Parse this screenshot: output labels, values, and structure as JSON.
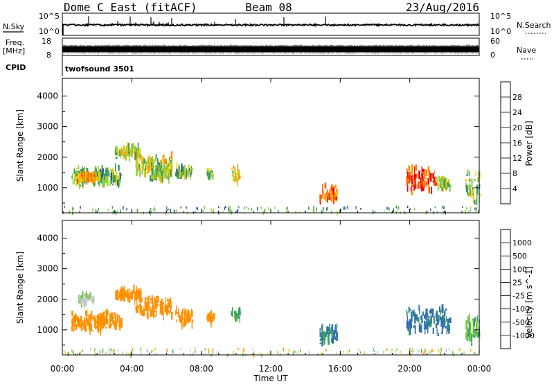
{
  "header": {
    "station": "Dome C East (fitACF)",
    "beam": "Beam 08",
    "date": "23/Aug/2016"
  },
  "strips": {
    "nsky_label": "N.Sky",
    "nsky_ticks": [
      "10^5",
      "10^0"
    ],
    "nsky_right_ticks": [
      "10^5",
      "10^0"
    ],
    "nsearch_label": "N.Search",
    "freq_label_1": "Freq.",
    "freq_label_2": "[MHz]",
    "freq_ticks": [
      "18",
      "8"
    ],
    "nave_ticks": [
      "60",
      "0"
    ],
    "nave_label": "Nave",
    "cpid_label": "CPID",
    "cpid_value": "twofsound 3501"
  },
  "power_colorbar": {
    "title": "Power [dB]",
    "ticks": [
      "28",
      "24",
      "20",
      "16",
      "12",
      "8",
      "4"
    ],
    "colors": [
      "#ee0000",
      "#ff5a00",
      "#ff9600",
      "#f0c800",
      "#90d040",
      "#3a9a5a",
      "#2a4fa0",
      "#1010ee"
    ]
  },
  "velocity_colorbar": {
    "title": "Velocity [m s^-1]",
    "ticks": [
      "1000",
      "500",
      "100",
      "25",
      "-25",
      "-100",
      "-500",
      "-1000"
    ],
    "colors": [
      "#2030c8",
      "#3070b0",
      "#3aa060",
      "#70c840",
      "#c8c8c8",
      "#ffc020",
      "#ff9000",
      "#ff5a00",
      "#ee0000"
    ]
  },
  "chart_data": [
    {
      "type": "heatmap",
      "panel": "power",
      "ylabel": "Slant Range [km]",
      "xlabel": "Time UT",
      "x_ticks": [
        "00:00",
        "04:00",
        "08:00",
        "12:00",
        "16:00",
        "20:00",
        "00:00"
      ],
      "y_ticks": [
        "1000",
        "2000",
        "3000",
        "4000"
      ],
      "xlim": [
        0,
        24
      ],
      "ylim": [
        180,
        4580
      ],
      "colorbar_range": [
        0,
        32
      ],
      "patches": [
        {
          "t": [
            0.5,
            2.2
          ],
          "r": [
            1000,
            1700
          ],
          "v": 14
        },
        {
          "t": [
            0.8,
            1.8
          ],
          "r": [
            1200,
            1500
          ],
          "v": 22
        },
        {
          "t": [
            2.0,
            3.4
          ],
          "r": [
            1000,
            1700
          ],
          "v": 12
        },
        {
          "t": [
            3.0,
            4.5
          ],
          "r": [
            1900,
            2400
          ],
          "v": 16
        },
        {
          "t": [
            4.2,
            6.3
          ],
          "r": [
            1400,
            2100
          ],
          "v": 16
        },
        {
          "t": [
            5.0,
            6.2
          ],
          "r": [
            1200,
            1700
          ],
          "v": 14
        },
        {
          "t": [
            6.5,
            7.5
          ],
          "r": [
            1300,
            1700
          ],
          "v": 12
        },
        {
          "t": [
            8.3,
            8.7
          ],
          "r": [
            1300,
            1600
          ],
          "v": 14
        },
        {
          "t": [
            9.7,
            10.2
          ],
          "r": [
            1100,
            1700
          ],
          "v": 18
        },
        {
          "t": [
            14.8,
            15.8
          ],
          "r": [
            500,
            1100
          ],
          "v": 24
        },
        {
          "t": [
            19.8,
            21.5
          ],
          "r": [
            800,
            1700
          ],
          "v": 26
        },
        {
          "t": [
            21.5,
            22.3
          ],
          "r": [
            900,
            1400
          ],
          "v": 14
        },
        {
          "t": [
            23.2,
            24.0
          ],
          "r": [
            400,
            1600
          ],
          "v": 14
        }
      ]
    },
    {
      "type": "heatmap",
      "panel": "velocity",
      "ylabel": "Slant Range [km]",
      "xlabel": "Time UT",
      "x_ticks": [
        "00:00",
        "04:00",
        "08:00",
        "12:00",
        "16:00",
        "20:00",
        "00:00"
      ],
      "y_ticks": [
        "1000",
        "2000",
        "3000",
        "4000"
      ],
      "xlim": [
        0,
        24
      ],
      "ylim": [
        180,
        4580
      ],
      "colorbar_range": [
        -1000,
        1000
      ],
      "patches": [
        {
          "t": [
            0.5,
            2.3
          ],
          "r": [
            900,
            1600
          ],
          "v": -100
        },
        {
          "t": [
            0.9,
            1.8
          ],
          "r": [
            1800,
            2200
          ],
          "v": 20
        },
        {
          "t": [
            2.0,
            3.4
          ],
          "r": [
            1000,
            1600
          ],
          "v": -120
        },
        {
          "t": [
            3.0,
            4.5
          ],
          "r": [
            1900,
            2400
          ],
          "v": -150
        },
        {
          "t": [
            4.2,
            6.3
          ],
          "r": [
            1400,
            2100
          ],
          "v": -130
        },
        {
          "t": [
            6.5,
            7.5
          ],
          "r": [
            1100,
            1700
          ],
          "v": -140
        },
        {
          "t": [
            8.3,
            8.7
          ],
          "r": [
            1200,
            1600
          ],
          "v": -150
        },
        {
          "t": [
            9.7,
            10.2
          ],
          "r": [
            1300,
            1700
          ],
          "v": 80
        },
        {
          "t": [
            14.8,
            15.8
          ],
          "r": [
            500,
            1200
          ],
          "v": 300
        },
        {
          "t": [
            19.8,
            22.3
          ],
          "r": [
            800,
            1800
          ],
          "v": 400
        },
        {
          "t": [
            23.2,
            24.0
          ],
          "r": [
            500,
            1500
          ],
          "v": 60
        }
      ]
    }
  ]
}
